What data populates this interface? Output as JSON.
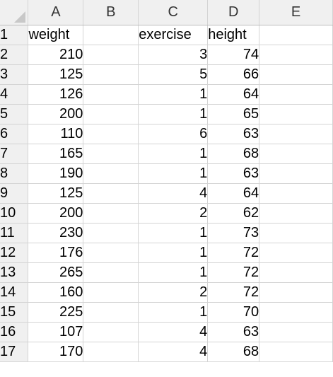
{
  "columns": [
    "A",
    "B",
    "C",
    "D",
    "E"
  ],
  "header_row": {
    "row_number": "1",
    "A": "weight",
    "B": "",
    "C": "exercise",
    "D": "height",
    "E": ""
  },
  "rows": [
    {
      "row_number": "2",
      "weight": "210",
      "exercise": "3",
      "height": "74"
    },
    {
      "row_number": "3",
      "weight": "125",
      "exercise": "5",
      "height": "66"
    },
    {
      "row_number": "4",
      "weight": "126",
      "exercise": "1",
      "height": "64"
    },
    {
      "row_number": "5",
      "weight": "200",
      "exercise": "1",
      "height": "65"
    },
    {
      "row_number": "6",
      "weight": "110",
      "exercise": "6",
      "height": "63"
    },
    {
      "row_number": "7",
      "weight": "165",
      "exercise": "1",
      "height": "68"
    },
    {
      "row_number": "8",
      "weight": "190",
      "exercise": "1",
      "height": "63"
    },
    {
      "row_number": "9",
      "weight": "125",
      "exercise": "4",
      "height": "64"
    },
    {
      "row_number": "10",
      "weight": "200",
      "exercise": "2",
      "height": "62"
    },
    {
      "row_number": "11",
      "weight": "230",
      "exercise": "1",
      "height": "73"
    },
    {
      "row_number": "12",
      "weight": "176",
      "exercise": "1",
      "height": "72"
    },
    {
      "row_number": "13",
      "weight": "265",
      "exercise": "1",
      "height": "72"
    },
    {
      "row_number": "14",
      "weight": "160",
      "exercise": "2",
      "height": "72"
    },
    {
      "row_number": "15",
      "weight": "225",
      "exercise": "1",
      "height": "70"
    },
    {
      "row_number": "16",
      "weight": "107",
      "exercise": "4",
      "height": "63"
    },
    {
      "row_number": "17",
      "weight": "170",
      "exercise": "4",
      "height": "68"
    }
  ]
}
